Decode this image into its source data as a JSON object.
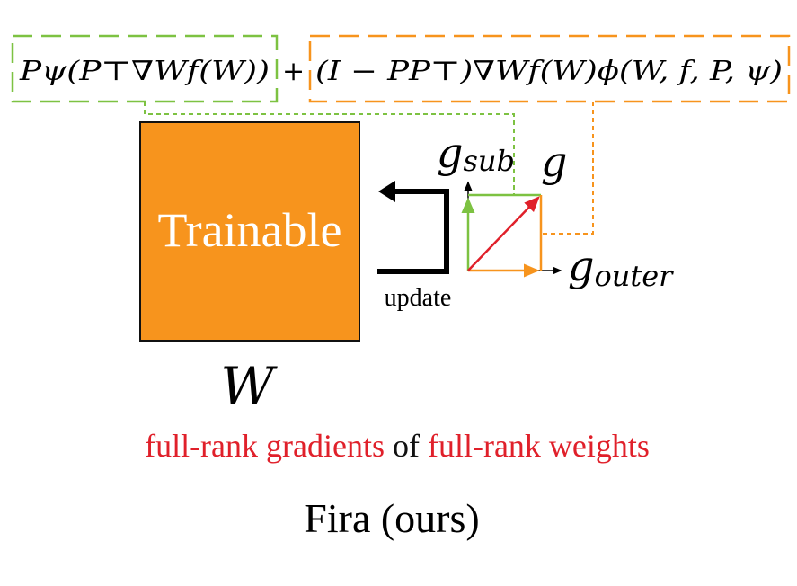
{
  "formula": {
    "term_subspace": "Pψ(P⊤∇Wf(W))",
    "plus": "+",
    "term_outer": "(I − PP⊤)∇Wf(W)ϕ(W, f, P, ψ)"
  },
  "weight_block": {
    "label": "Trainable",
    "symbol": "W",
    "color": "#f7941d"
  },
  "update_label": "update",
  "vectors": {
    "g_sub_base": "g",
    "g_sub_sub": "sub",
    "g_label": "g",
    "g_outer_base": "g",
    "g_outer_sub": "outer",
    "sub_color": "#7dc242",
    "outer_color": "#f7941d",
    "g_color": "#e0202a"
  },
  "caption": {
    "part1": "full-rank gradients",
    "part2": " of ",
    "part3": "full-rank weights",
    "highlight_color": "#e0202a"
  },
  "method_name": "Fira (ours)"
}
